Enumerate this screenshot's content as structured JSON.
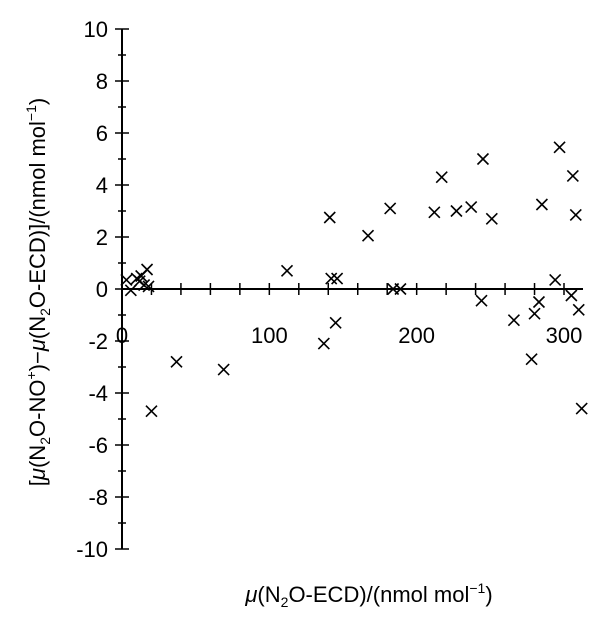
{
  "chart_data": {
    "type": "scatter",
    "title": "",
    "xlabel": {
      "mu": "μ",
      "before_sub": "(N",
      "sub": "2",
      "after_sub": "O-ECD)/(nmol mol",
      "sup": "−1",
      "end": ")"
    },
    "ylabel": {
      "open": "[",
      "mu1": "μ",
      "p1": "(N",
      "sub1": "2",
      "p2": "O-NO",
      "sup1": "+",
      "p3": ")−",
      "mu2": "μ",
      "p4": "(N",
      "sub2": "2",
      "p5": "O-ECD)]/(nmol mol",
      "sup2": "−1",
      "p6": ")"
    },
    "xlim": [
      0,
      310
    ],
    "ylim": [
      -10,
      10
    ],
    "x_ticks": [
      "0",
      "100",
      "200",
      "300"
    ],
    "y_ticks": [
      "10",
      "8",
      "6",
      "4",
      "2",
      "0",
      "-2",
      "-4",
      "-6",
      "-8",
      "-10"
    ],
    "marker": "x",
    "grid": false,
    "legend": false,
    "points": [
      {
        "x": 3,
        "y": 0.35
      },
      {
        "x": 6,
        "y": -0.05
      },
      {
        "x": 10,
        "y": 0.4
      },
      {
        "x": 12,
        "y": 0.3
      },
      {
        "x": 13,
        "y": 0.5
      },
      {
        "x": 15,
        "y": 0.15
      },
      {
        "x": 17,
        "y": 0.75
      },
      {
        "x": 18,
        "y": 0.1
      },
      {
        "x": 20,
        "y": -4.7
      },
      {
        "x": 37,
        "y": -2.8
      },
      {
        "x": 69,
        "y": -3.1
      },
      {
        "x": 112,
        "y": 0.7
      },
      {
        "x": 137,
        "y": -2.1
      },
      {
        "x": 141,
        "y": 2.75
      },
      {
        "x": 142,
        "y": 0.4
      },
      {
        "x": 145,
        "y": -1.3
      },
      {
        "x": 146,
        "y": 0.4
      },
      {
        "x": 167,
        "y": 2.05
      },
      {
        "x": 182,
        "y": 3.1
      },
      {
        "x": 184,
        "y": 0.0
      },
      {
        "x": 189,
        "y": 0.0
      },
      {
        "x": 212,
        "y": 2.95
      },
      {
        "x": 217,
        "y": 4.3
      },
      {
        "x": 227,
        "y": 3.0
      },
      {
        "x": 237,
        "y": 3.15
      },
      {
        "x": 244,
        "y": -0.45
      },
      {
        "x": 245,
        "y": 5.0
      },
      {
        "x": 251,
        "y": 2.7
      },
      {
        "x": 266,
        "y": -1.2
      },
      {
        "x": 278,
        "y": -2.7
      },
      {
        "x": 280,
        "y": -0.95
      },
      {
        "x": 283,
        "y": -0.5
      },
      {
        "x": 285,
        "y": 3.25
      },
      {
        "x": 294,
        "y": 0.35
      },
      {
        "x": 297,
        "y": 5.45
      },
      {
        "x": 305,
        "y": -0.25
      },
      {
        "x": 306,
        "y": 4.35
      },
      {
        "x": 308,
        "y": 2.85
      },
      {
        "x": 310,
        "y": -0.8
      },
      {
        "x": 312,
        "y": -4.6
      }
    ]
  }
}
